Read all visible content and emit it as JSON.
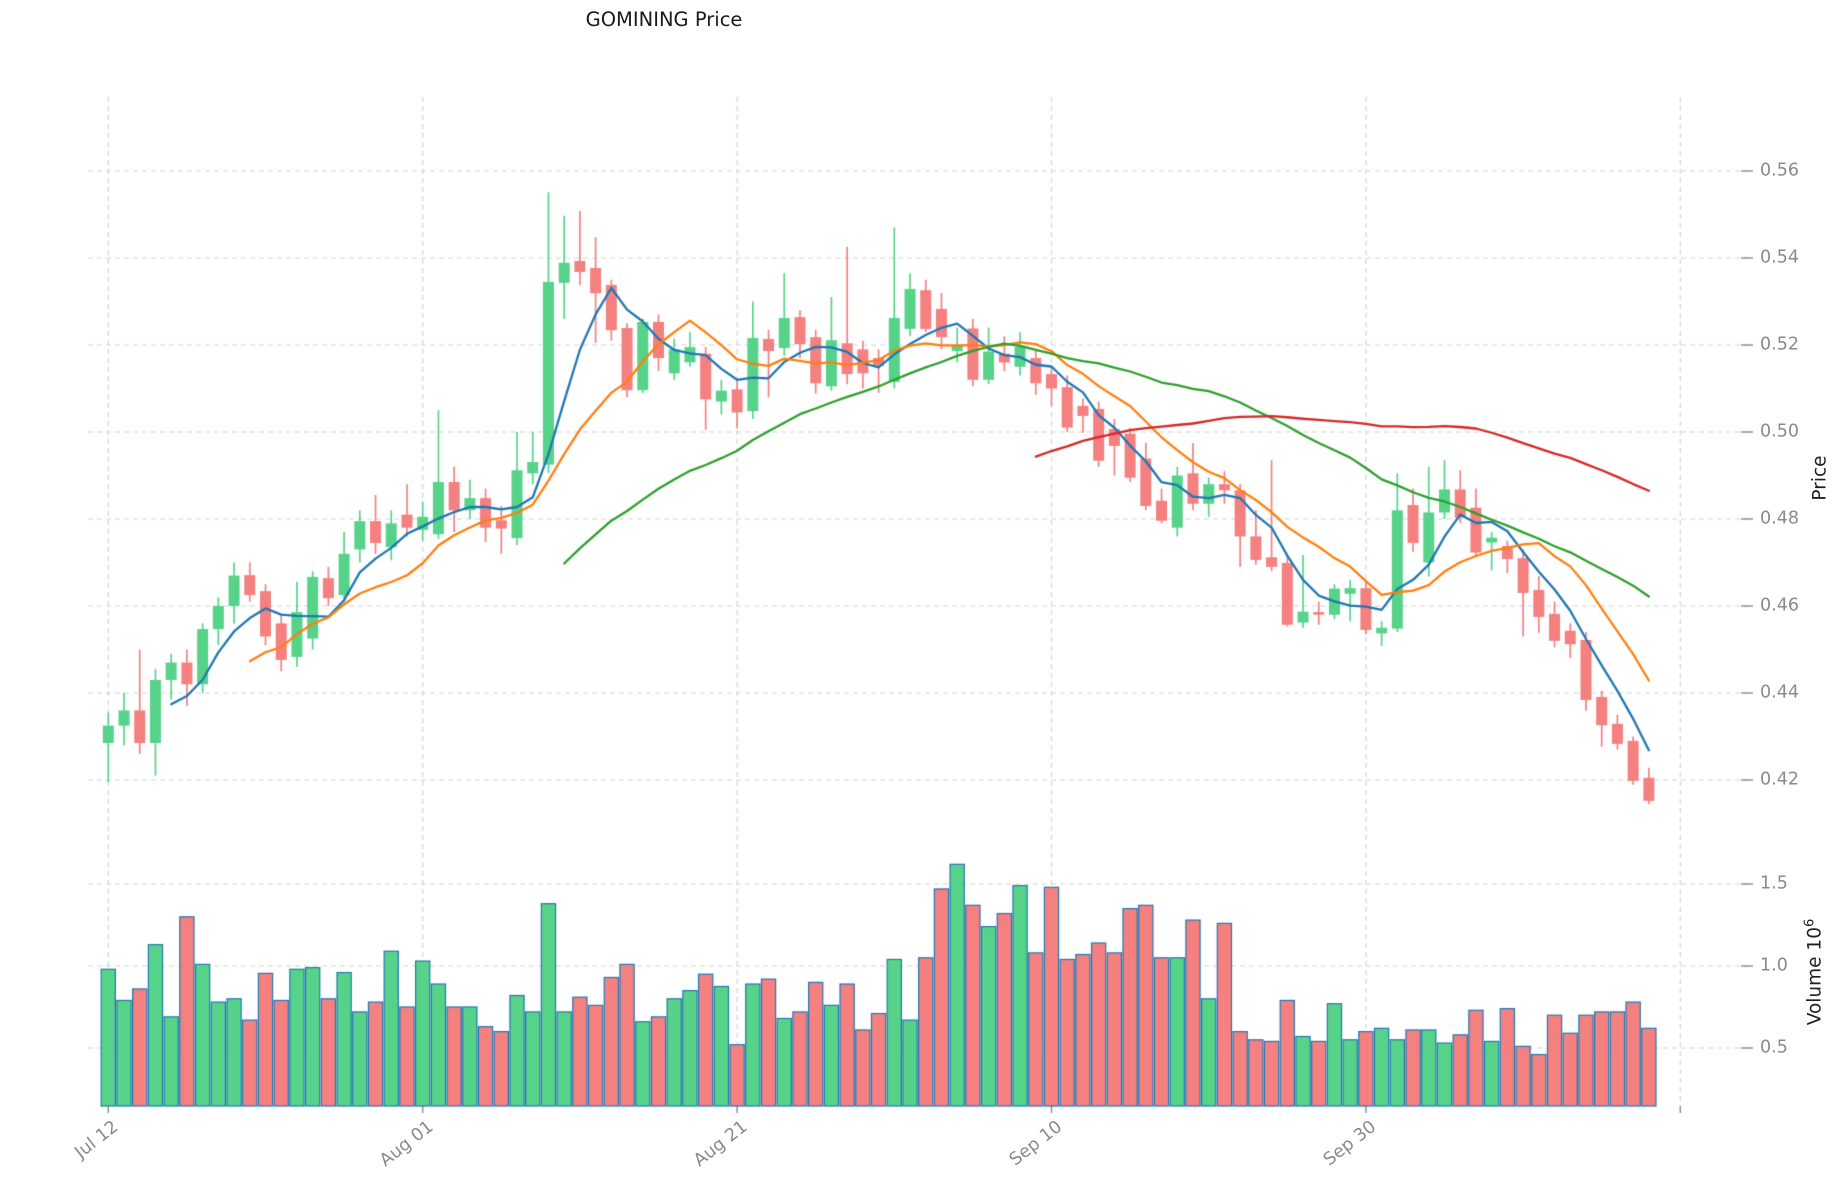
{
  "title": "GOMINING Price",
  "axes": {
    "price_label": "Price",
    "volume_label_base": "Volume  10",
    "volume_label_exp": "6",
    "price_ticks": [
      0.42,
      0.44,
      0.46,
      0.48,
      0.5,
      0.52,
      0.54,
      0.56
    ],
    "volume_ticks": [
      0.5,
      1.0,
      1.5
    ],
    "x_ticks": [
      {
        "index": 0,
        "label": "Jul 12"
      },
      {
        "index": 20,
        "label": "Aug 01"
      },
      {
        "index": 40,
        "label": "Aug 21"
      },
      {
        "index": 60,
        "label": "Sep 10"
      },
      {
        "index": 80,
        "label": "Sep 30"
      },
      {
        "index": 100,
        "label": ""
      }
    ]
  },
  "chart_data": {
    "type": "candlestick",
    "title": "GOMINING Price",
    "xlabel": "",
    "ylabel": "Price",
    "volume_ylabel": "Volume 10^6",
    "x_start": "Jul 12",
    "x_tick_labels": [
      "Jul 12",
      "Aug 01",
      "Aug 21",
      "Sep 10",
      "Sep 30"
    ],
    "price_ylim": [
      0.405,
      0.577
    ],
    "volume_ylim": [
      0.146,
      1.75
    ],
    "grid": true,
    "legend": false,
    "moving_averages": [
      {
        "window": 5,
        "color": "#1f77b4"
      },
      {
        "window": 10,
        "color": "#ff7f0e"
      },
      {
        "window": 30,
        "color": "#2ca02c"
      },
      {
        "window": 60,
        "color": "#d62728"
      }
    ],
    "colors": {
      "up": "#57d389",
      "down": "#f48080",
      "volume_edge": "#1f77b4",
      "grid_line": "#d4d4d4",
      "tick_mark": "#8a8a8a",
      "tick_text": "#8a8a8a"
    },
    "ohlcv_format": [
      "open",
      "high",
      "low",
      "close",
      "volume_millions"
    ],
    "ohlcv": [
      [
        0.4285,
        0.4355,
        0.4195,
        0.4325,
        0.98
      ],
      [
        0.4325,
        0.44,
        0.428,
        0.436,
        0.79
      ],
      [
        0.436,
        0.45,
        0.426,
        0.4285,
        0.86
      ],
      [
        0.4285,
        0.4455,
        0.421,
        0.443,
        1.13
      ],
      [
        0.443,
        0.449,
        0.4385,
        0.447,
        0.69
      ],
      [
        0.447,
        0.45,
        0.437,
        0.442,
        1.3
      ],
      [
        0.442,
        0.456,
        0.44,
        0.4547,
        1.01
      ],
      [
        0.4547,
        0.462,
        0.451,
        0.46,
        0.78
      ],
      [
        0.46,
        0.47,
        0.456,
        0.467,
        0.8
      ],
      [
        0.4671,
        0.47,
        0.461,
        0.4625,
        0.67
      ],
      [
        0.4634,
        0.465,
        0.451,
        0.453,
        0.955
      ],
      [
        0.456,
        0.458,
        0.445,
        0.4476,
        0.79
      ],
      [
        0.4483,
        0.4655,
        0.446,
        0.4586,
        0.98
      ],
      [
        0.4525,
        0.468,
        0.45,
        0.4667,
        0.99
      ],
      [
        0.4664,
        0.469,
        0.46,
        0.4618,
        0.8
      ],
      [
        0.4625,
        0.477,
        0.461,
        0.472,
        0.96
      ],
      [
        0.473,
        0.482,
        0.47,
        0.4795,
        0.72
      ],
      [
        0.4795,
        0.4855,
        0.472,
        0.4745,
        0.78
      ],
      [
        0.4735,
        0.482,
        0.4705,
        0.479,
        1.09
      ],
      [
        0.481,
        0.488,
        0.476,
        0.478,
        0.75
      ],
      [
        0.4775,
        0.484,
        0.475,
        0.4805,
        1.03
      ],
      [
        0.4765,
        0.505,
        0.4755,
        0.4885,
        0.89
      ],
      [
        0.4885,
        0.492,
        0.477,
        0.482,
        0.75
      ],
      [
        0.482,
        0.489,
        0.48,
        0.4848,
        0.75
      ],
      [
        0.4848,
        0.487,
        0.4747,
        0.478,
        0.63
      ],
      [
        0.4797,
        0.483,
        0.472,
        0.4778,
        0.6
      ],
      [
        0.4756,
        0.5,
        0.474,
        0.4912,
        0.82
      ],
      [
        0.4905,
        0.5,
        0.488,
        0.4931,
        0.72
      ],
      [
        0.4925,
        0.5551,
        0.4905,
        0.5345,
        1.38
      ],
      [
        0.5343,
        0.5497,
        0.526,
        0.5389,
        0.72
      ],
      [
        0.5393,
        0.5508,
        0.5338,
        0.5368,
        0.81
      ],
      [
        0.5377,
        0.5448,
        0.5205,
        0.5319,
        0.76
      ],
      [
        0.5338,
        0.535,
        0.521,
        0.5234,
        0.93
      ],
      [
        0.5239,
        0.525,
        0.508,
        0.5096,
        1.01
      ],
      [
        0.5096,
        0.526,
        0.509,
        0.5253,
        0.66
      ],
      [
        0.5253,
        0.527,
        0.514,
        0.517,
        0.69
      ],
      [
        0.5135,
        0.5215,
        0.512,
        0.519,
        0.8
      ],
      [
        0.516,
        0.523,
        0.515,
        0.5195,
        0.85
      ],
      [
        0.518,
        0.5195,
        0.5005,
        0.5075,
        0.95
      ],
      [
        0.507,
        0.512,
        0.504,
        0.5095,
        0.875
      ],
      [
        0.5098,
        0.512,
        0.5008,
        0.5045,
        0.52
      ],
      [
        0.5048,
        0.53,
        0.503,
        0.5216,
        0.89
      ],
      [
        0.5214,
        0.5235,
        0.508,
        0.5186,
        0.92
      ],
      [
        0.5193,
        0.5365,
        0.5175,
        0.5262,
        0.68
      ],
      [
        0.5264,
        0.528,
        0.517,
        0.5202,
        0.72
      ],
      [
        0.5218,
        0.5235,
        0.5088,
        0.5112,
        0.9
      ],
      [
        0.5105,
        0.531,
        0.5095,
        0.5211,
        0.76
      ],
      [
        0.5204,
        0.5426,
        0.511,
        0.5133,
        0.89
      ],
      [
        0.519,
        0.521,
        0.51,
        0.5135,
        0.61
      ],
      [
        0.517,
        0.519,
        0.509,
        0.5152,
        0.71
      ],
      [
        0.5115,
        0.547,
        0.51,
        0.5262,
        1.04
      ],
      [
        0.5237,
        0.5365,
        0.522,
        0.5329,
        0.67
      ],
      [
        0.5326,
        0.535,
        0.523,
        0.5237,
        1.05
      ],
      [
        0.5283,
        0.532,
        0.519,
        0.5218,
        1.47
      ],
      [
        0.5186,
        0.524,
        0.516,
        0.52,
        1.62
      ],
      [
        0.5238,
        0.526,
        0.5105,
        0.512,
        1.37
      ],
      [
        0.512,
        0.524,
        0.511,
        0.5185,
        1.24
      ],
      [
        0.518,
        0.522,
        0.514,
        0.516,
        1.32
      ],
      [
        0.515,
        0.523,
        0.513,
        0.5196,
        1.49
      ],
      [
        0.517,
        0.519,
        0.5085,
        0.5112,
        1.08
      ],
      [
        0.5133,
        0.515,
        0.506,
        0.51,
        1.48
      ],
      [
        0.5103,
        0.513,
        0.5,
        0.501,
        1.04
      ],
      [
        0.506,
        0.5077,
        0.4998,
        0.5037,
        1.07
      ],
      [
        0.5053,
        0.507,
        0.492,
        0.4934,
        1.14
      ],
      [
        0.5007,
        0.503,
        0.49,
        0.4968,
        1.08
      ],
      [
        0.4996,
        0.501,
        0.4885,
        0.4895,
        1.35
      ],
      [
        0.4939,
        0.4975,
        0.482,
        0.483,
        1.37
      ],
      [
        0.4842,
        0.487,
        0.479,
        0.4796,
        1.05
      ],
      [
        0.478,
        0.492,
        0.476,
        0.49,
        1.05
      ],
      [
        0.4905,
        0.4975,
        0.482,
        0.4835,
        1.28
      ],
      [
        0.4835,
        0.4895,
        0.4805,
        0.488,
        0.8
      ],
      [
        0.488,
        0.491,
        0.4835,
        0.4866,
        1.26
      ],
      [
        0.4866,
        0.488,
        0.469,
        0.476,
        0.6
      ],
      [
        0.476,
        0.482,
        0.4695,
        0.4706,
        0.55
      ],
      [
        0.4712,
        0.4935,
        0.468,
        0.469,
        0.54
      ],
      [
        0.4699,
        0.472,
        0.4553,
        0.4557,
        0.79
      ],
      [
        0.4562,
        0.4717,
        0.455,
        0.4587,
        0.57
      ],
      [
        0.4586,
        0.461,
        0.4557,
        0.458,
        0.54
      ],
      [
        0.458,
        0.465,
        0.457,
        0.464,
        0.77
      ],
      [
        0.4628,
        0.466,
        0.4565,
        0.4641,
        0.55
      ],
      [
        0.4641,
        0.4655,
        0.4535,
        0.4545,
        0.6
      ],
      [
        0.4537,
        0.4565,
        0.4508,
        0.455,
        0.62
      ],
      [
        0.4548,
        0.4905,
        0.454,
        0.482,
        0.55
      ],
      [
        0.4832,
        0.487,
        0.4725,
        0.4745,
        0.61
      ],
      [
        0.47,
        0.492,
        0.4668,
        0.4815,
        0.61
      ],
      [
        0.4815,
        0.4935,
        0.48,
        0.4868,
        0.53
      ],
      [
        0.4868,
        0.4912,
        0.479,
        0.4803,
        0.58
      ],
      [
        0.4826,
        0.487,
        0.4712,
        0.4723,
        0.73
      ],
      [
        0.4746,
        0.477,
        0.4682,
        0.4757,
        0.54
      ],
      [
        0.4738,
        0.475,
        0.4676,
        0.4708,
        0.74
      ],
      [
        0.471,
        0.473,
        0.453,
        0.463,
        0.51
      ],
      [
        0.4637,
        0.4669,
        0.4538,
        0.4575,
        0.46
      ],
      [
        0.4582,
        0.461,
        0.4505,
        0.452,
        0.7
      ],
      [
        0.4543,
        0.456,
        0.448,
        0.4512,
        0.59
      ],
      [
        0.4522,
        0.454,
        0.4359,
        0.4384,
        0.7
      ],
      [
        0.4391,
        0.4405,
        0.4276,
        0.4326,
        0.72
      ],
      [
        0.4329,
        0.435,
        0.427,
        0.4283,
        0.72
      ],
      [
        0.429,
        0.43,
        0.4189,
        0.4198,
        0.78
      ],
      [
        0.4205,
        0.4228,
        0.4145,
        0.4152,
        0.62
      ]
    ]
  }
}
